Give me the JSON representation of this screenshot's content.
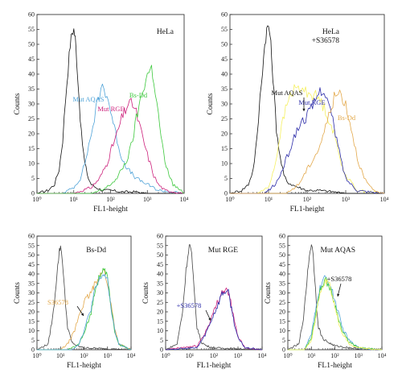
{
  "figure": {
    "background": "#ffffff"
  },
  "chart_data": [
    {
      "id": "p1",
      "type": "line",
      "title": "HeLa",
      "xlabel": "FL1-height",
      "ylabel": "Counts",
      "xscale": "log",
      "xlim": [
        1,
        10000
      ],
      "ylim": [
        0,
        60
      ],
      "yticks": [
        "0",
        "5",
        "10",
        "15",
        "20",
        "25",
        "30",
        "35",
        "40",
        "45",
        "50",
        "55",
        "60"
      ],
      "xticks": [
        "10^0",
        "10^1",
        "10^2",
        "10^3",
        "10^4"
      ],
      "series": [
        {
          "color": "#111111",
          "x": [
            1,
            2,
            3,
            4,
            5,
            6,
            7,
            8,
            9,
            10,
            11,
            12,
            14,
            16,
            20,
            25,
            30,
            40,
            60,
            100,
            200,
            500,
            1000,
            10000
          ],
          "y": [
            0,
            1,
            3,
            8,
            18,
            32,
            42,
            50,
            54,
            55,
            52,
            45,
            32,
            20,
            10,
            5,
            3,
            2,
            1,
            1,
            0.5,
            0.5,
            0,
            0
          ]
        },
        {
          "name": "Mut AQAS",
          "color": "#4fa3d8",
          "x": [
            1,
            5,
            10,
            15,
            20,
            30,
            40,
            50,
            60,
            80,
            100,
            150,
            200,
            300,
            500,
            1000,
            2000,
            10000
          ],
          "y": [
            0,
            0,
            2,
            5,
            10,
            20,
            28,
            33,
            36,
            33,
            28,
            18,
            12,
            8,
            5,
            3,
            1,
            0
          ]
        },
        {
          "name": "Mut RGE",
          "color": "#cc1f7a",
          "x": [
            1,
            10,
            30,
            50,
            80,
            100,
            150,
            200,
            300,
            400,
            500,
            700,
            1000,
            1500,
            2000,
            3000,
            10000
          ],
          "y": [
            0,
            0,
            2,
            5,
            10,
            14,
            20,
            25,
            30,
            30,
            27,
            20,
            13,
            6,
            3,
            1,
            0
          ]
        },
        {
          "name": "Bs-Dd",
          "color": "#3cc83c",
          "x": [
            1,
            30,
            60,
            100,
            150,
            200,
            300,
            400,
            500,
            700,
            1000,
            1300,
            1500,
            2000,
            3000,
            5000,
            10000
          ],
          "y": [
            0,
            0,
            1,
            3,
            5,
            8,
            12,
            18,
            25,
            33,
            40,
            42,
            38,
            26,
            10,
            3,
            0
          ]
        }
      ],
      "annotations": [
        {
          "text": "Mut AQAS",
          "color": "#4fa3d8"
        },
        {
          "text": "Mut RGE",
          "color": "#cc1f7a"
        },
        {
          "text": "Bs-Dd",
          "color": "#3cc83c"
        }
      ]
    },
    {
      "id": "p2",
      "type": "line",
      "title": "HeLa\n+S36578",
      "xlabel": "FL1-height",
      "ylabel": "Counts",
      "xscale": "log",
      "xlim": [
        1,
        10000
      ],
      "ylim": [
        0,
        60
      ],
      "yticks": [
        "0",
        "5",
        "10",
        "15",
        "20",
        "25",
        "30",
        "35",
        "40",
        "45",
        "50",
        "55",
        "60"
      ],
      "xticks": [
        "10^0",
        "10^1",
        "10^2",
        "10^3",
        "10^4"
      ],
      "series": [
        {
          "color": "#111111",
          "x": [
            1,
            2,
            3,
            4,
            5,
            6,
            7,
            8,
            9,
            10,
            11,
            12,
            14,
            16,
            20,
            25,
            30,
            40,
            60,
            100,
            200,
            500,
            1000,
            10000
          ],
          "y": [
            0,
            1,
            3,
            8,
            18,
            32,
            42,
            50,
            55,
            56,
            53,
            46,
            33,
            22,
            12,
            6,
            4,
            3,
            2,
            1,
            1,
            0.5,
            0,
            0
          ]
        },
        {
          "color": "#f5f061",
          "x": [
            1,
            5,
            10,
            15,
            20,
            30,
            40,
            50,
            70,
            100,
            150,
            200,
            300,
            500,
            700,
            1000,
            2000,
            10000
          ],
          "y": [
            0,
            0,
            2,
            10,
            20,
            30,
            34,
            35,
            35,
            34,
            33,
            32,
            28,
            20,
            12,
            6,
            1,
            0
          ]
        },
        {
          "name": "Mut RGE",
          "color": "#2a2aa8",
          "x": [
            1,
            8,
            15,
            20,
            30,
            50,
            70,
            100,
            150,
            200,
            250,
            300,
            400,
            500,
            800,
            1000,
            2000,
            10000
          ],
          "y": [
            0,
            0,
            3,
            6,
            12,
            20,
            24,
            26,
            30,
            34,
            35,
            33,
            28,
            22,
            10,
            5,
            1,
            0
          ]
        },
        {
          "name": "Bs-Dd",
          "color": "#e3a84a",
          "x": [
            1,
            30,
            60,
            100,
            150,
            200,
            300,
            400,
            500,
            700,
            1000,
            1500,
            2000,
            3000,
            5000,
            10000
          ],
          "y": [
            0,
            0,
            3,
            8,
            12,
            15,
            22,
            28,
            32,
            34,
            30,
            20,
            12,
            5,
            1,
            0
          ]
        }
      ],
      "annotations": [
        {
          "text": "Mut AQAS",
          "color": "#111111"
        },
        {
          "text": "Mut RGE",
          "color": "#2a2aa8"
        },
        {
          "text": "Bs-Dd",
          "color": "#e3a84a"
        }
      ]
    },
    {
      "id": "p3",
      "type": "line",
      "title": "Bs-Dd",
      "xlabel": "FL1-height",
      "ylabel": "Counts",
      "xscale": "log",
      "xlim": [
        1,
        10000
      ],
      "ylim": [
        0,
        60
      ],
      "yticks": [
        "0",
        "5",
        "10",
        "15",
        "20",
        "25",
        "30",
        "35",
        "40",
        "45",
        "50",
        "55",
        "60"
      ],
      "xticks": [
        "10^0",
        "10^1",
        "10^2",
        "10^3",
        "10^4"
      ],
      "series": [
        {
          "color": "#444444",
          "x": [
            1,
            3,
            5,
            7,
            9,
            10,
            12,
            15,
            20,
            30,
            50,
            100,
            1000,
            10000
          ],
          "y": [
            0,
            3,
            20,
            40,
            52,
            55,
            48,
            30,
            12,
            4,
            2,
            1,
            0.5,
            0
          ]
        },
        {
          "color": "#e3a84a",
          "x": [
            1,
            10,
            20,
            40,
            60,
            100,
            200,
            300,
            500,
            700,
            1000,
            2000,
            3000,
            10000
          ],
          "y": [
            0,
            0,
            3,
            10,
            18,
            25,
            30,
            35,
            40,
            42,
            35,
            12,
            3,
            0
          ]
        },
        {
          "color": "#3cc83c",
          "x": [
            1,
            20,
            50,
            100,
            200,
            300,
            500,
            700,
            1000,
            1500,
            2000,
            3000,
            10000
          ],
          "y": [
            0,
            0,
            2,
            8,
            20,
            32,
            40,
            43,
            38,
            20,
            10,
            3,
            0
          ]
        },
        {
          "color": "#4fa3d8",
          "x": [
            1,
            30,
            60,
            100,
            200,
            300,
            500,
            700,
            1000,
            1500,
            2000,
            3000,
            10000
          ],
          "y": [
            0,
            0,
            3,
            10,
            22,
            32,
            38,
            40,
            36,
            20,
            10,
            3,
            0
          ]
        }
      ],
      "annotations": [
        {
          "text": "S36578",
          "color": "#e3a84a"
        }
      ]
    },
    {
      "id": "p4",
      "type": "line",
      "title": "Mut RGE",
      "xlabel": "FL1-height",
      "ylabel": "Counts",
      "xscale": "log",
      "xlim": [
        1,
        10000
      ],
      "ylim": [
        0,
        60
      ],
      "yticks": [
        "0",
        "5",
        "10",
        "15",
        "20",
        "25",
        "30",
        "35",
        "40",
        "45",
        "50",
        "55",
        "60"
      ],
      "xticks": [
        "10^0",
        "10^1",
        "10^2",
        "10^3",
        "10^4"
      ],
      "series": [
        {
          "color": "#444444",
          "x": [
            1,
            3,
            5,
            7,
            9,
            10,
            12,
            15,
            20,
            30,
            50,
            100,
            1000,
            10000
          ],
          "y": [
            0,
            3,
            20,
            42,
            53,
            56,
            50,
            32,
            12,
            4,
            2,
            1,
            0.5,
            0
          ]
        },
        {
          "color": "#cc1f7a",
          "x": [
            1,
            20,
            40,
            60,
            100,
            150,
            200,
            300,
            400,
            500,
            700,
            1000,
            2000,
            10000
          ],
          "y": [
            0,
            2,
            8,
            13,
            20,
            26,
            30,
            32,
            30,
            25,
            15,
            7,
            1,
            0
          ]
        },
        {
          "color": "#2a2aa8",
          "x": [
            1,
            20,
            40,
            60,
            100,
            150,
            200,
            300,
            400,
            500,
            700,
            1000,
            2000,
            10000
          ],
          "y": [
            0,
            1,
            7,
            12,
            19,
            24,
            29,
            31,
            30,
            24,
            14,
            6,
            1,
            0
          ]
        }
      ],
      "annotations": [
        {
          "text": "+S36578",
          "color": "#2a2aa8"
        }
      ]
    },
    {
      "id": "p5",
      "type": "line",
      "title": "Mut AQAS",
      "xlabel": "FL1-height",
      "ylabel": "Counts",
      "xscale": "log",
      "xlim": [
        1,
        10000
      ],
      "ylim": [
        0,
        60
      ],
      "yticks": [
        "0",
        "5",
        "10",
        "15",
        "20",
        "25",
        "30",
        "35",
        "40",
        "45",
        "50",
        "55",
        "60"
      ],
      "xticks": [
        "10^0",
        "10^1",
        "10^2",
        "10^3",
        "10^4"
      ],
      "series": [
        {
          "color": "#444444",
          "x": [
            1,
            3,
            5,
            7,
            9,
            10,
            12,
            15,
            20,
            30,
            50,
            100,
            1000,
            10000
          ],
          "y": [
            0,
            3,
            20,
            42,
            53,
            56,
            50,
            32,
            12,
            6,
            4,
            2,
            0.5,
            0
          ]
        },
        {
          "color": "#4fa3d8",
          "x": [
            1,
            5,
            10,
            15,
            20,
            30,
            40,
            60,
            80,
            100,
            150,
            200,
            400,
            1000,
            10000
          ],
          "y": [
            0,
            0,
            8,
            20,
            30,
            36,
            38,
            35,
            30,
            26,
            18,
            12,
            5,
            1,
            0
          ]
        },
        {
          "color": "#3cc83c",
          "x": [
            1,
            5,
            10,
            15,
            20,
            30,
            40,
            60,
            80,
            100,
            150,
            200,
            400,
            1000,
            10000
          ],
          "y": [
            0,
            0,
            6,
            18,
            28,
            35,
            37,
            33,
            28,
            24,
            16,
            10,
            4,
            1,
            0
          ]
        },
        {
          "color": "#f5f061",
          "x": [
            1,
            5,
            10,
            15,
            20,
            30,
            40,
            60,
            80,
            100,
            150,
            200,
            400,
            1000,
            10000
          ],
          "y": [
            0,
            0,
            5,
            16,
            26,
            33,
            36,
            34,
            28,
            22,
            14,
            9,
            3,
            1,
            0
          ]
        }
      ],
      "annotations": [
        {
          "text": "+S36578",
          "color": "#111111"
        }
      ]
    }
  ]
}
